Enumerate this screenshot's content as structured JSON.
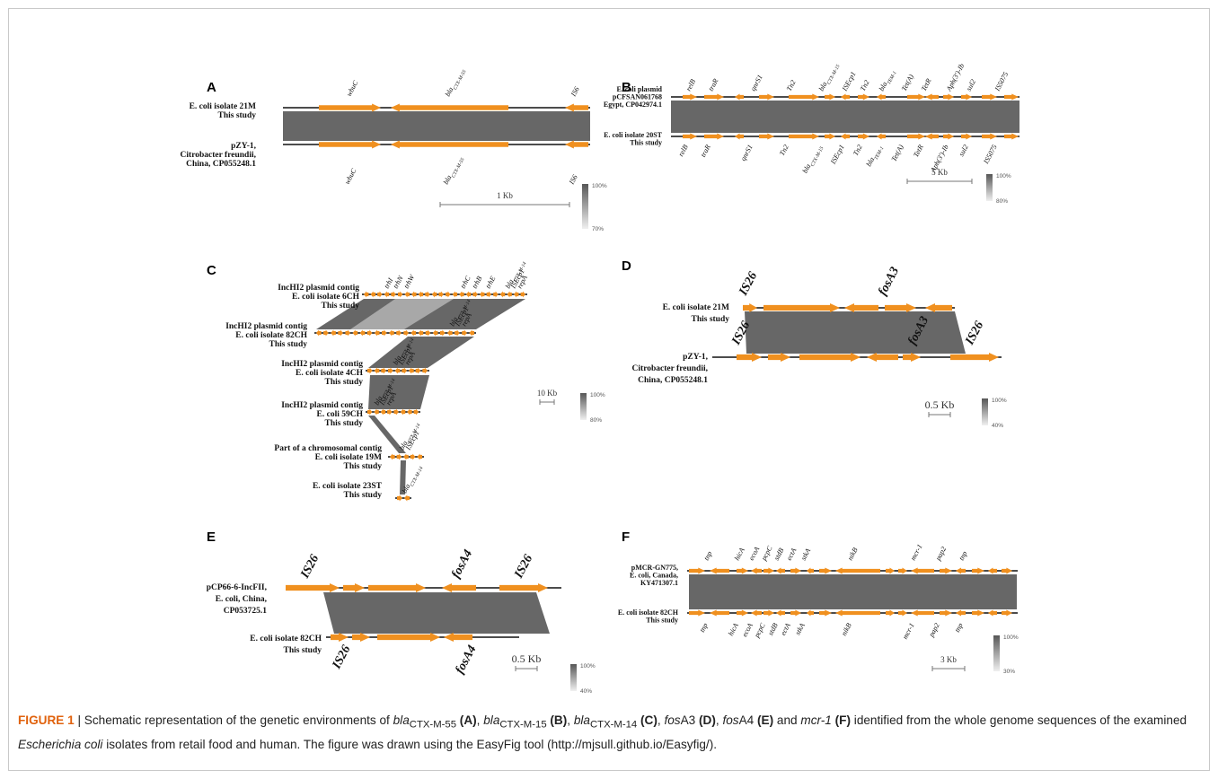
{
  "colors": {
    "gene_arrow": "#f0901f",
    "identity_band": "#676767",
    "caption_label": "#e0620d"
  },
  "panels": {
    "A": {
      "letter": "A",
      "top_label": [
        "E. coli isolate 21M",
        "This study"
      ],
      "bottom_label": [
        "pZY-1,",
        "Citrobacter freundii,",
        "China, CP055248.1"
      ],
      "top_genes": [
        "wbuC",
        "blaCTX-M-55",
        "IS6"
      ],
      "bottom_genes": [
        "wbuC",
        "blaCTX-M-55",
        "IS6"
      ],
      "scale": "1 Kb",
      "legend_max": "100%",
      "legend_min": "70%"
    },
    "B": {
      "letter": "B",
      "top_label": [
        "E. coli plasmid",
        "pCFSAN061768",
        "Egypt, CP042974.1"
      ],
      "bottom_label": [
        "E. coli isolate 20ST",
        "This study"
      ],
      "top_genes": [
        "relB",
        "traR",
        "qnrS1",
        "Tn2",
        "blaCTX-M-15",
        "ISEcp1",
        "Tn2",
        "blaTEM-1",
        "Tet(A)",
        "TetR",
        "Aph(3')-Ib",
        "sul2",
        "IS5075"
      ],
      "bottom_genes": [
        "relB",
        "traR",
        "qnrS1",
        "Tn2",
        "blaCTX-M-15",
        "ISEcp1",
        "Tn2",
        "blaTEM-1",
        "Tet(A)",
        "TetR",
        "Aph(3')-Ib",
        "sul2",
        "IS5075"
      ],
      "scale": "5 Kb",
      "legend_max": "100%",
      "legend_min": "80%"
    },
    "C": {
      "letter": "C",
      "rows": [
        [
          "IncHI2 plasmid contig",
          "E. coli isolate 6CH",
          "This study"
        ],
        [
          "IncHI2 plasmid contig",
          "E. coli isolate 82CH",
          "This study"
        ],
        [
          "IncHI2 plasmid contig",
          "E. coli isolate 4CH",
          "This study"
        ],
        [
          "IncHI2 plasmid contig",
          "E. coli 59CH",
          "This study"
        ],
        [
          "Part of a chromosomal contig",
          "E. coli isolate 19M",
          "This study"
        ],
        [
          "E. coli isolate 23ST",
          "This study"
        ]
      ],
      "genes_top": [
        "trhI",
        "trhN",
        "trhW",
        "trhC",
        "trhB",
        "trhE",
        "blaCTX-M-14",
        "ISEcp1",
        "repA"
      ],
      "genes_mid": [
        "blaCTX-M-14",
        "ISEcp1",
        "repA"
      ],
      "genes_last": [
        "blaCTX-M-14"
      ],
      "scale": "10 Kb",
      "legend_max": "100%",
      "legend_min": "80%"
    },
    "D": {
      "letter": "D",
      "top_label": [
        "E. coli isolate 21M",
        "This study"
      ],
      "bottom_label": [
        "pZY-1,",
        "Citrobacter freundii,",
        "China, CP055248.1"
      ],
      "top_genes": [
        "IS26",
        "fosA3"
      ],
      "bottom_genes": [
        "IS26",
        "fosA3",
        "IS26"
      ],
      "scale": "0.5 Kb",
      "legend_max": "100%",
      "legend_min": "40%"
    },
    "E": {
      "letter": "E",
      "top_label": [
        "pCP66-6-IncFII,",
        "E. coli, China,",
        "CP053725.1"
      ],
      "bottom_label": [
        "E. coli isolate 82CH",
        "This study"
      ],
      "top_genes": [
        "IS26",
        "fosA4",
        "IS26"
      ],
      "bottom_genes": [
        "IS26",
        "fosA4"
      ],
      "scale": "0.5 Kb",
      "legend_max": "100%",
      "legend_min": "40%"
    },
    "F": {
      "letter": "F",
      "top_label": [
        "pMCR-GN775,",
        "E. coli, Canada,",
        "KY471307.1"
      ],
      "bottom_label": [
        "E. coli isolate 82CH",
        "This study"
      ],
      "top_genes": [
        "tnp",
        "hicA",
        "ecoA",
        "pcpC",
        "stdB",
        "ectA",
        "stkA",
        "nikB",
        "mcr-1",
        "pap2",
        "tnp"
      ],
      "bottom_genes": [
        "tnp",
        "hicA",
        "ecoA",
        "pcpC",
        "stdB",
        "ectA",
        "stkA",
        "nikB",
        "mcr-1",
        "pap2",
        "tnp"
      ],
      "scale": "3 Kb",
      "legend_max": "100%",
      "legend_min": "30%"
    }
  },
  "caption": {
    "label": "FIGURE 1",
    "sep": " | ",
    "t1": "Schematic representation of the genetic environments of ",
    "g1": "bla",
    "g1sub": "CTX-M-55",
    "p1": "(A)",
    "g2": "bla",
    "g2sub": "CTX-M-15",
    "p2": "(B)",
    "g3": "bla",
    "g3sub": "CTX-M-14",
    "p3": "(C)",
    "g4": "fos",
    "g4b": "A3",
    "p4": "(D)",
    "g5": "fos",
    "g5b": "A4",
    "p5": "(E)",
    "and": " and ",
    "g6": "mcr-1",
    "p6": "(F)",
    "t2": " identified from the whole genome sequences of the examined ",
    "species": "Escherichia coli",
    "t3": " isolates from retail food and human. The figure was drawn using the EasyFig tool (http://mjsull.github.io/Easyfig/)."
  }
}
